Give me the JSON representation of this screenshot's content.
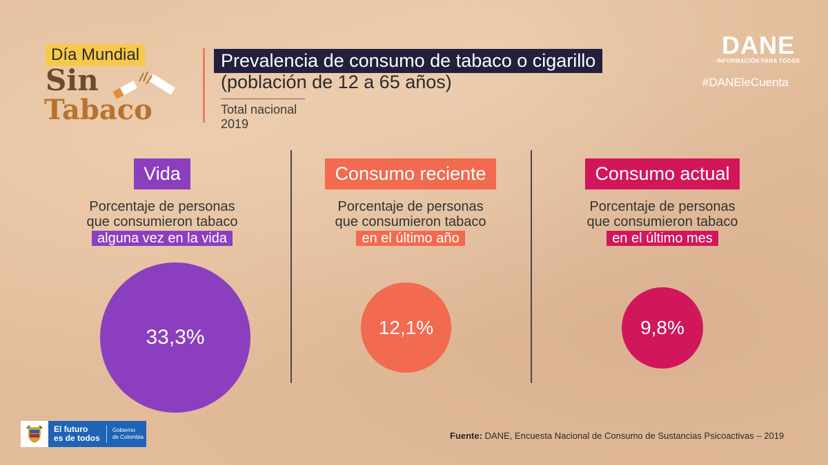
{
  "header": {
    "logo_tag": "Día Mundial",
    "logo_sin": "Sin",
    "logo_tabaco": "Tabaco",
    "title_line1": "Prevalencia de consumo de tabaco o cigarillo",
    "title_line2": "(población de 12 a 65 años)",
    "subtitle_line1": "Total nacional",
    "subtitle_line2": "2019"
  },
  "brand": {
    "dane_word": "DANE",
    "dane_tagline": "INFORMACIÓN PARA TODOS",
    "hashtag": "#DANEleCuenta"
  },
  "footer": {
    "gov_line1": "El futuro",
    "gov_line2": "es de todos",
    "gov_right1": "Gobierno",
    "gov_right2": "de Colombia",
    "source_label": "Fuente:",
    "source_text": "DANE, Encuesta Nacional de Consumo de Sustancias Psicoactivas – 2019"
  },
  "colors": {
    "background": "#e2bc9a",
    "vida": "#8b3fbf",
    "reciente": "#f26a4f",
    "actual": "#d1165c",
    "title_bar": "#231f3c"
  },
  "chart_data": {
    "type": "bubble",
    "title": "Prevalencia de consumo de tabaco o cigarillo",
    "subtitle": "(población de 12 a 65 años)",
    "unit": "%",
    "categories": [
      "Vida",
      "Consumo reciente",
      "Consumo actual"
    ],
    "series": [
      {
        "name": "Prevalencia",
        "values": [
          33.3,
          12.1,
          9.8
        ],
        "labels": [
          "33,3%",
          "12,1%",
          "9,8%"
        ]
      }
    ],
    "panels": [
      {
        "key": "vida",
        "label": "Vida",
        "desc_line1": "Porcentaje de personas",
        "desc_line2": "que consumieron tabaco",
        "highlight": "alguna vez en la vida",
        "value": 33.3,
        "value_label": "33,3%",
        "color": "#8b3fbf"
      },
      {
        "key": "reciente",
        "label": "Consumo reciente",
        "desc_line1": "Porcentaje de personas",
        "desc_line2": "que consumieron tabaco",
        "highlight": "en el último año",
        "value": 12.1,
        "value_label": "12,1%",
        "color": "#f26a4f"
      },
      {
        "key": "actual",
        "label": "Consumo actual",
        "desc_line1": "Porcentaje de personas",
        "desc_line2": "que consumieron tabaco",
        "highlight": "en el último mes",
        "value": 9.8,
        "value_label": "9,8%",
        "color": "#d1165c"
      }
    ]
  }
}
